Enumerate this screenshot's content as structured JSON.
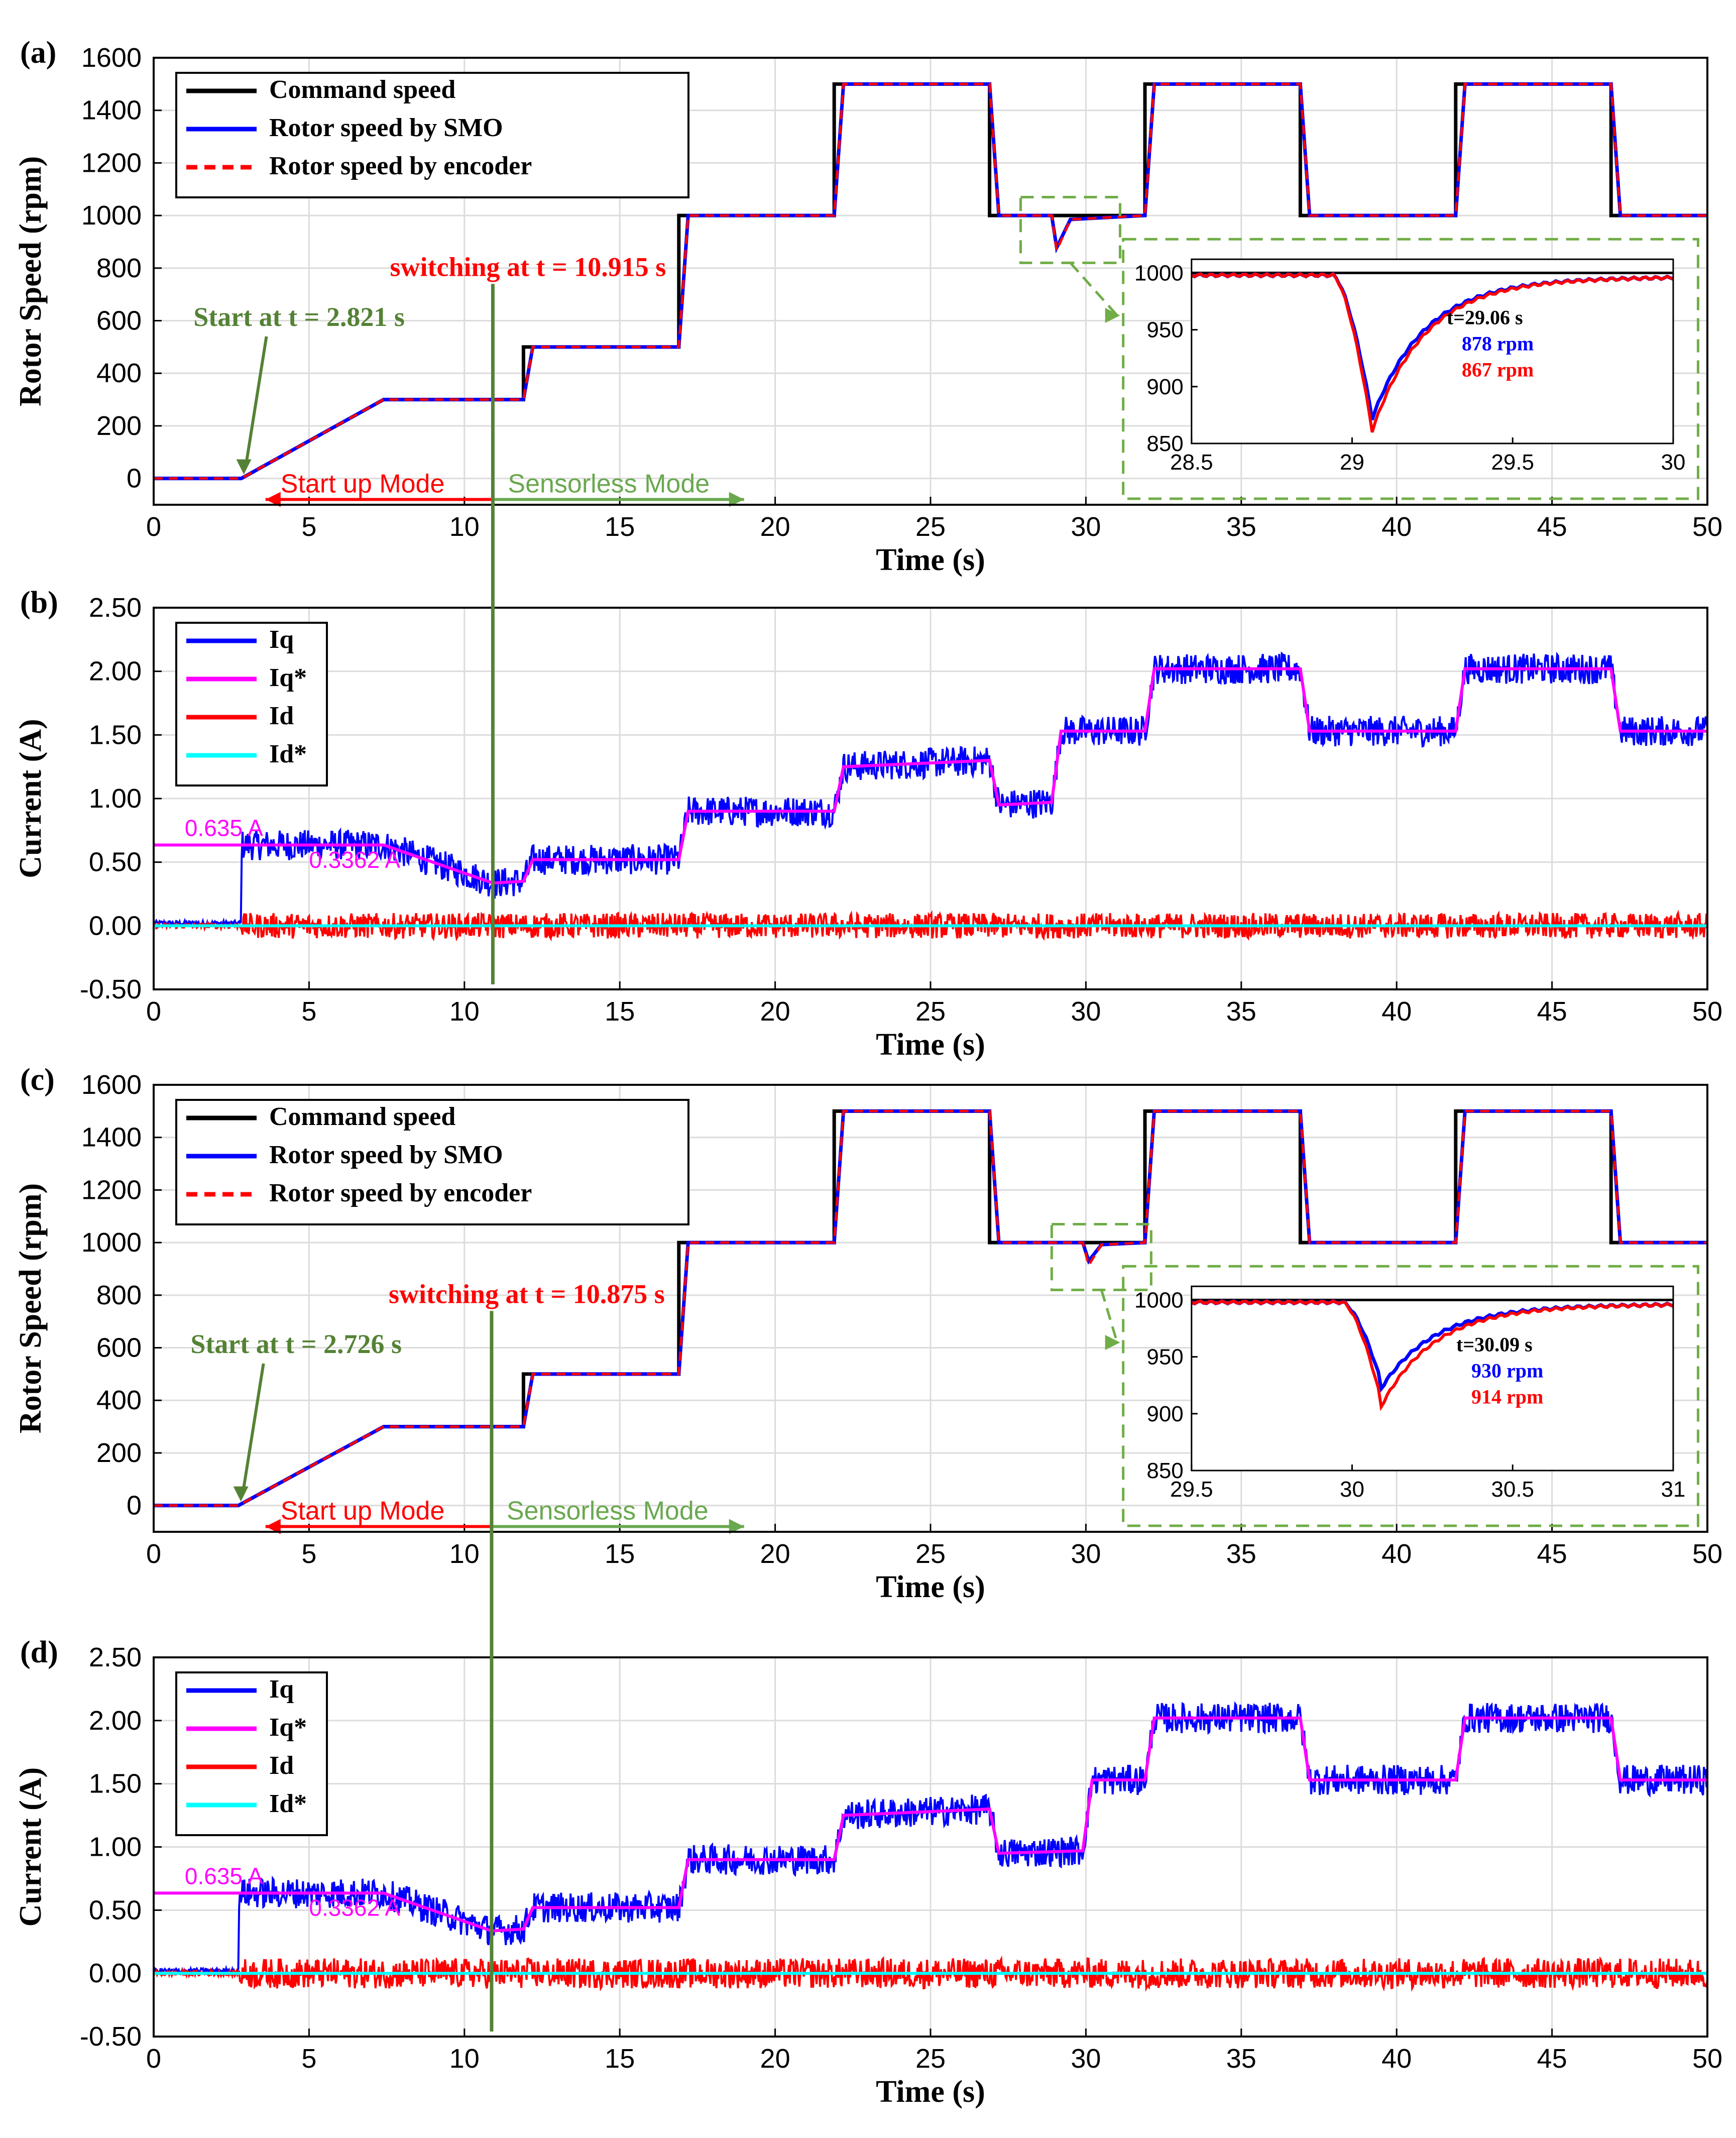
{
  "chart_data": [
    {
      "panel": "(a)",
      "type": "line",
      "xlabel": "Time (s)",
      "ylabel": "Rotor Speed (rpm)",
      "xlim": [
        0,
        50
      ],
      "ylim": [
        -100,
        1600
      ],
      "xticks": [
        "0",
        "5",
        "10",
        "15",
        "20",
        "25",
        "30",
        "35",
        "40",
        "45",
        "50"
      ],
      "yticks": [
        "0",
        "200",
        "400",
        "600",
        "800",
        "1000",
        "1200",
        "1400",
        "1600"
      ],
      "grid": true,
      "legend": [
        "Command speed",
        "Rotor speed by SMO",
        "Rotor speed by encoder"
      ],
      "legend_location": "top-left",
      "start_time": 2.821,
      "switch_time": 10.915,
      "command_speed": {
        "x": [
          0,
          2.821,
          7.4,
          11.9,
          11.9,
          16.9,
          16.9,
          21.9,
          21.9,
          26.9,
          26.9,
          31.9,
          31.9,
          36.9,
          36.9,
          41.9,
          41.9,
          46.9,
          46.9,
          50
        ],
        "y": [
          0,
          0,
          300,
          300,
          500,
          500,
          1000,
          1000,
          1500,
          1500,
          1000,
          1000,
          1500,
          1500,
          1000,
          1000,
          1500,
          1500,
          1000,
          1000
        ]
      },
      "rotor_speed_smo": {
        "x": [
          0,
          2.821,
          7.4,
          11.9,
          12.2,
          16.9,
          17.2,
          21.9,
          22.2,
          26.9,
          27.2,
          28.9,
          29.06,
          29.5,
          31.9,
          32.2,
          36.9,
          37.2,
          41.9,
          42.2,
          46.9,
          47.2,
          50
        ],
        "y": [
          0,
          0,
          300,
          300,
          500,
          500,
          1000,
          1000,
          1500,
          1500,
          1000,
          1000,
          878,
          985,
          1000,
          1500,
          1500,
          1000,
          1000,
          1500,
          1500,
          1000,
          1000
        ]
      },
      "rotor_speed_encoder": {
        "x": [
          0,
          2.821,
          7.4,
          11.9,
          12.2,
          16.9,
          17.2,
          21.9,
          22.2,
          26.9,
          27.2,
          28.9,
          29.06,
          29.5,
          31.9,
          32.2,
          36.9,
          37.2,
          41.9,
          42.2,
          46.9,
          47.2,
          50
        ],
        "y": [
          0,
          0,
          300,
          300,
          500,
          500,
          1000,
          1000,
          1500,
          1500,
          1000,
          1000,
          867,
          985,
          1000,
          1500,
          1500,
          1000,
          1000,
          1500,
          1500,
          1000,
          1000
        ]
      },
      "annotations": {
        "switching": "switching at t = 10.915 s",
        "start": "Start at t = 2.821 s",
        "startup_mode": "Start up Mode",
        "sensorless_mode": "Sensorless Mode"
      },
      "zoom": {
        "xlim": [
          28.5,
          30
        ],
        "ylim": [
          850,
          1000
        ],
        "xticks": [
          "28.5",
          "29",
          "29.5",
          "30"
        ],
        "yticks": [
          "850",
          "900",
          "950",
          "1000"
        ],
        "time_label": "t=29.06 s",
        "smo_label": "878 rpm",
        "encoder_label": "867 rpm",
        "dip_time": 29.06,
        "smo_min": 878,
        "encoder_min": 867
      }
    },
    {
      "panel": "(b)",
      "type": "line",
      "xlabel": "Time (s)",
      "ylabel": "Current (A)",
      "xlim": [
        0,
        50
      ],
      "ylim": [
        -0.5,
        2.5
      ],
      "xticks": [
        "0",
        "5",
        "10",
        "15",
        "20",
        "25",
        "30",
        "35",
        "40",
        "45",
        "50"
      ],
      "yticks": [
        "-0.50",
        "0.00",
        "0.50",
        "1.00",
        "1.50",
        "2.00",
        "2.50"
      ],
      "grid": true,
      "legend": [
        "Iq",
        "Iq*",
        "Id",
        "Id*"
      ],
      "legend_location": "top-left",
      "iq_ref": {
        "x": [
          0,
          2.821,
          7.4,
          10.915,
          11.9,
          12.2,
          16.9,
          17.2,
          21.9,
          22.2,
          26.9,
          27.2,
          28.9,
          29.2,
          31.9,
          32.2,
          36.9,
          37.2,
          41.9,
          42.2,
          46.9,
          47.2,
          50
        ],
        "y": [
          0.635,
          0.635,
          0.635,
          0.3362,
          0.35,
          0.52,
          0.52,
          0.9,
          0.9,
          1.25,
          1.3,
          0.95,
          0.97,
          1.53,
          1.53,
          2.02,
          2.02,
          1.53,
          1.53,
          2.02,
          2.02,
          1.53,
          1.53
        ]
      },
      "iq_ripple": 0.12,
      "id_ripple": 0.1,
      "iq_label": "0.635 A",
      "iq_label_low": "0.3362 A"
    },
    {
      "panel": "(c)",
      "type": "line",
      "xlabel": "Time (s)",
      "ylabel": "Rotor Speed (rpm)",
      "xlim": [
        0,
        50
      ],
      "ylim": [
        -100,
        1600
      ],
      "xticks": [
        "0",
        "5",
        "10",
        "15",
        "20",
        "25",
        "30",
        "35",
        "40",
        "45",
        "50"
      ],
      "yticks": [
        "0",
        "200",
        "400",
        "600",
        "800",
        "1000",
        "1200",
        "1400",
        "1600"
      ],
      "grid": true,
      "legend": [
        "Command speed",
        "Rotor speed by SMO",
        "Rotor speed by encoder"
      ],
      "legend_location": "top-left",
      "start_time": 2.726,
      "switch_time": 10.875,
      "command_speed": {
        "x": [
          0,
          2.726,
          7.4,
          11.9,
          11.9,
          16.9,
          16.9,
          21.9,
          21.9,
          26.9,
          26.9,
          31.9,
          31.9,
          36.9,
          36.9,
          41.9,
          41.9,
          46.9,
          46.9,
          50
        ],
        "y": [
          0,
          0,
          300,
          300,
          500,
          500,
          1000,
          1000,
          1500,
          1500,
          1000,
          1000,
          1500,
          1500,
          1000,
          1000,
          1500,
          1500,
          1000,
          1000
        ]
      },
      "rotor_speed_smo": {
        "x": [
          0,
          2.726,
          7.4,
          11.9,
          12.2,
          16.9,
          17.2,
          21.9,
          22.2,
          26.9,
          27.2,
          29.9,
          30.09,
          30.5,
          31.9,
          32.2,
          36.9,
          37.2,
          41.9,
          42.2,
          46.9,
          47.2,
          50
        ],
        "y": [
          0,
          0,
          300,
          300,
          500,
          500,
          1000,
          1000,
          1500,
          1500,
          1000,
          1000,
          930,
          992,
          1000,
          1500,
          1500,
          1000,
          1000,
          1500,
          1500,
          1000,
          1000
        ]
      },
      "rotor_speed_encoder": {
        "x": [
          0,
          2.726,
          7.4,
          11.9,
          12.2,
          16.9,
          17.2,
          21.9,
          22.2,
          26.9,
          27.2,
          29.9,
          30.09,
          30.5,
          31.9,
          32.2,
          36.9,
          37.2,
          41.9,
          42.2,
          46.9,
          47.2,
          50
        ],
        "y": [
          0,
          0,
          300,
          300,
          500,
          500,
          1000,
          1000,
          1500,
          1500,
          1000,
          1000,
          914,
          992,
          1000,
          1500,
          1500,
          1000,
          1000,
          1500,
          1500,
          1000,
          1000
        ]
      },
      "annotations": {
        "switching": "switching at t = 10.875 s",
        "start": "Start at t = 2.726 s",
        "startup_mode": "Start up Mode",
        "sensorless_mode": "Sensorless Mode"
      },
      "zoom": {
        "xlim": [
          29.5,
          31
        ],
        "ylim": [
          850,
          1000
        ],
        "xticks": [
          "29.5",
          "30",
          "30.5",
          "31"
        ],
        "yticks": [
          "850",
          "900",
          "950",
          "1000"
        ],
        "time_label": "t=30.09 s",
        "smo_label": "930 rpm",
        "encoder_label": "914 rpm",
        "dip_time": 30.09,
        "smo_min": 930,
        "encoder_min": 914
      }
    },
    {
      "panel": "(d)",
      "type": "line",
      "xlabel": "Time (s)",
      "ylabel": "Current (A)",
      "xlim": [
        0,
        50
      ],
      "ylim": [
        -0.5,
        2.5
      ],
      "xticks": [
        "0",
        "5",
        "10",
        "15",
        "20",
        "25",
        "30",
        "35",
        "40",
        "45",
        "50"
      ],
      "yticks": [
        "-0.50",
        "0.00",
        "0.50",
        "1.00",
        "1.50",
        "2.00",
        "2.50"
      ],
      "grid": true,
      "legend": [
        "Iq",
        "Iq*",
        "Id",
        "Id*"
      ],
      "legend_location": "top-left",
      "iq_ref": {
        "x": [
          0,
          2.726,
          7.4,
          10.875,
          11.9,
          12.2,
          16.9,
          17.2,
          21.9,
          22.2,
          26.9,
          27.2,
          29.9,
          30.2,
          31.9,
          32.2,
          36.9,
          37.2,
          41.9,
          42.2,
          46.9,
          47.2,
          50
        ],
        "y": [
          0.635,
          0.635,
          0.635,
          0.3362,
          0.35,
          0.52,
          0.52,
          0.9,
          0.9,
          1.25,
          1.3,
          0.95,
          0.97,
          1.53,
          1.53,
          2.02,
          2.02,
          1.53,
          1.53,
          2.02,
          2.02,
          1.53,
          1.53
        ]
      },
      "iq_ripple": 0.12,
      "id_ripple": 0.12,
      "iq_label": "0.635 A",
      "iq_label_low": "0.3362 A"
    }
  ],
  "colors": {
    "command": "#000000",
    "smo": "#0000ff",
    "encoder": "#ff0000",
    "iq": "#0000ff",
    "iq_ref": "#ff00ff",
    "id": "#ff0000",
    "id_ref": "#00ffff",
    "annotation_green": "#548235",
    "grid": "#dcdcdc"
  }
}
